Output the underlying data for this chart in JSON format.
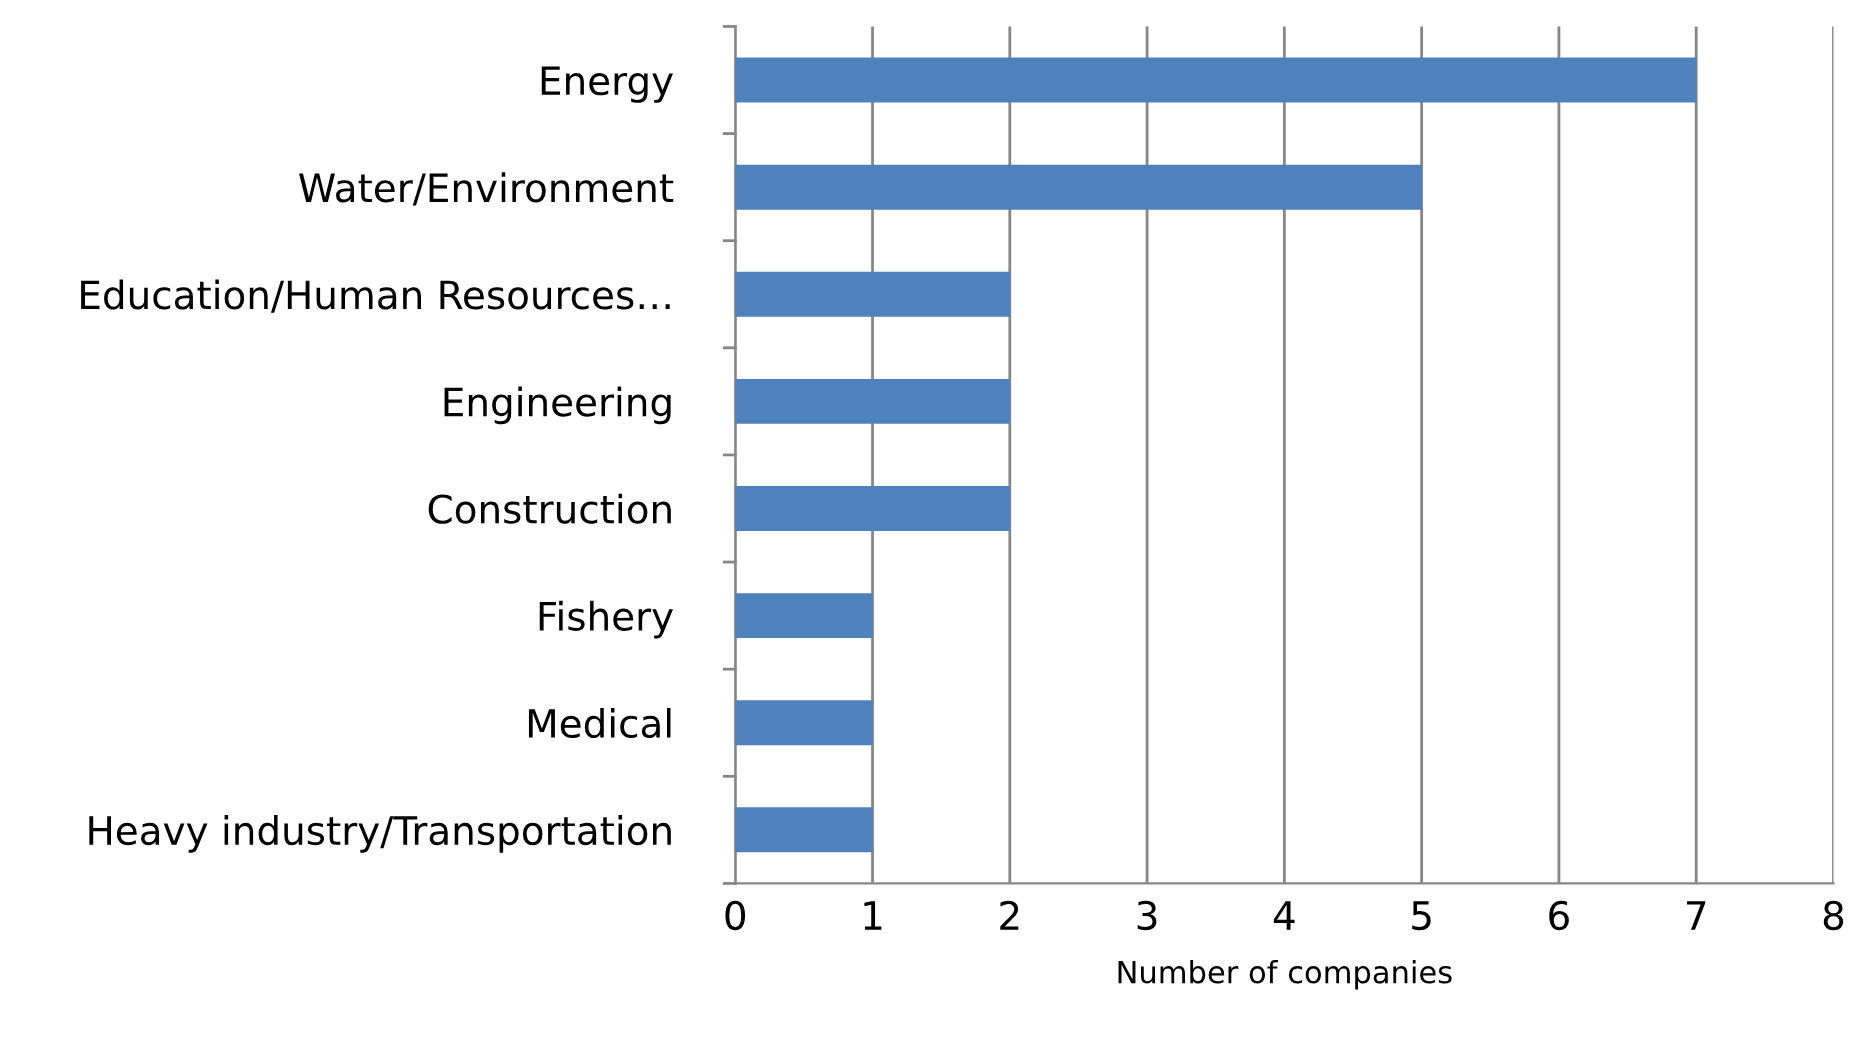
{
  "chart_data": {
    "type": "bar",
    "orientation": "horizontal",
    "xlabel": "Number of companies",
    "categories": [
      "Energy",
      "Water/Environment",
      "Education/Human Resources…",
      "Engineering",
      "Construction",
      "Fishery",
      "Medical",
      "Heavy industry/Transportation"
    ],
    "values": [
      7,
      5,
      2,
      2,
      2,
      1,
      1,
      1
    ],
    "color": "#4f81bd",
    "xlim": [
      0,
      8
    ],
    "xticks": [
      0,
      1,
      2,
      3,
      4,
      5,
      6,
      7,
      8
    ],
    "grid": "x",
    "legend": false
  }
}
